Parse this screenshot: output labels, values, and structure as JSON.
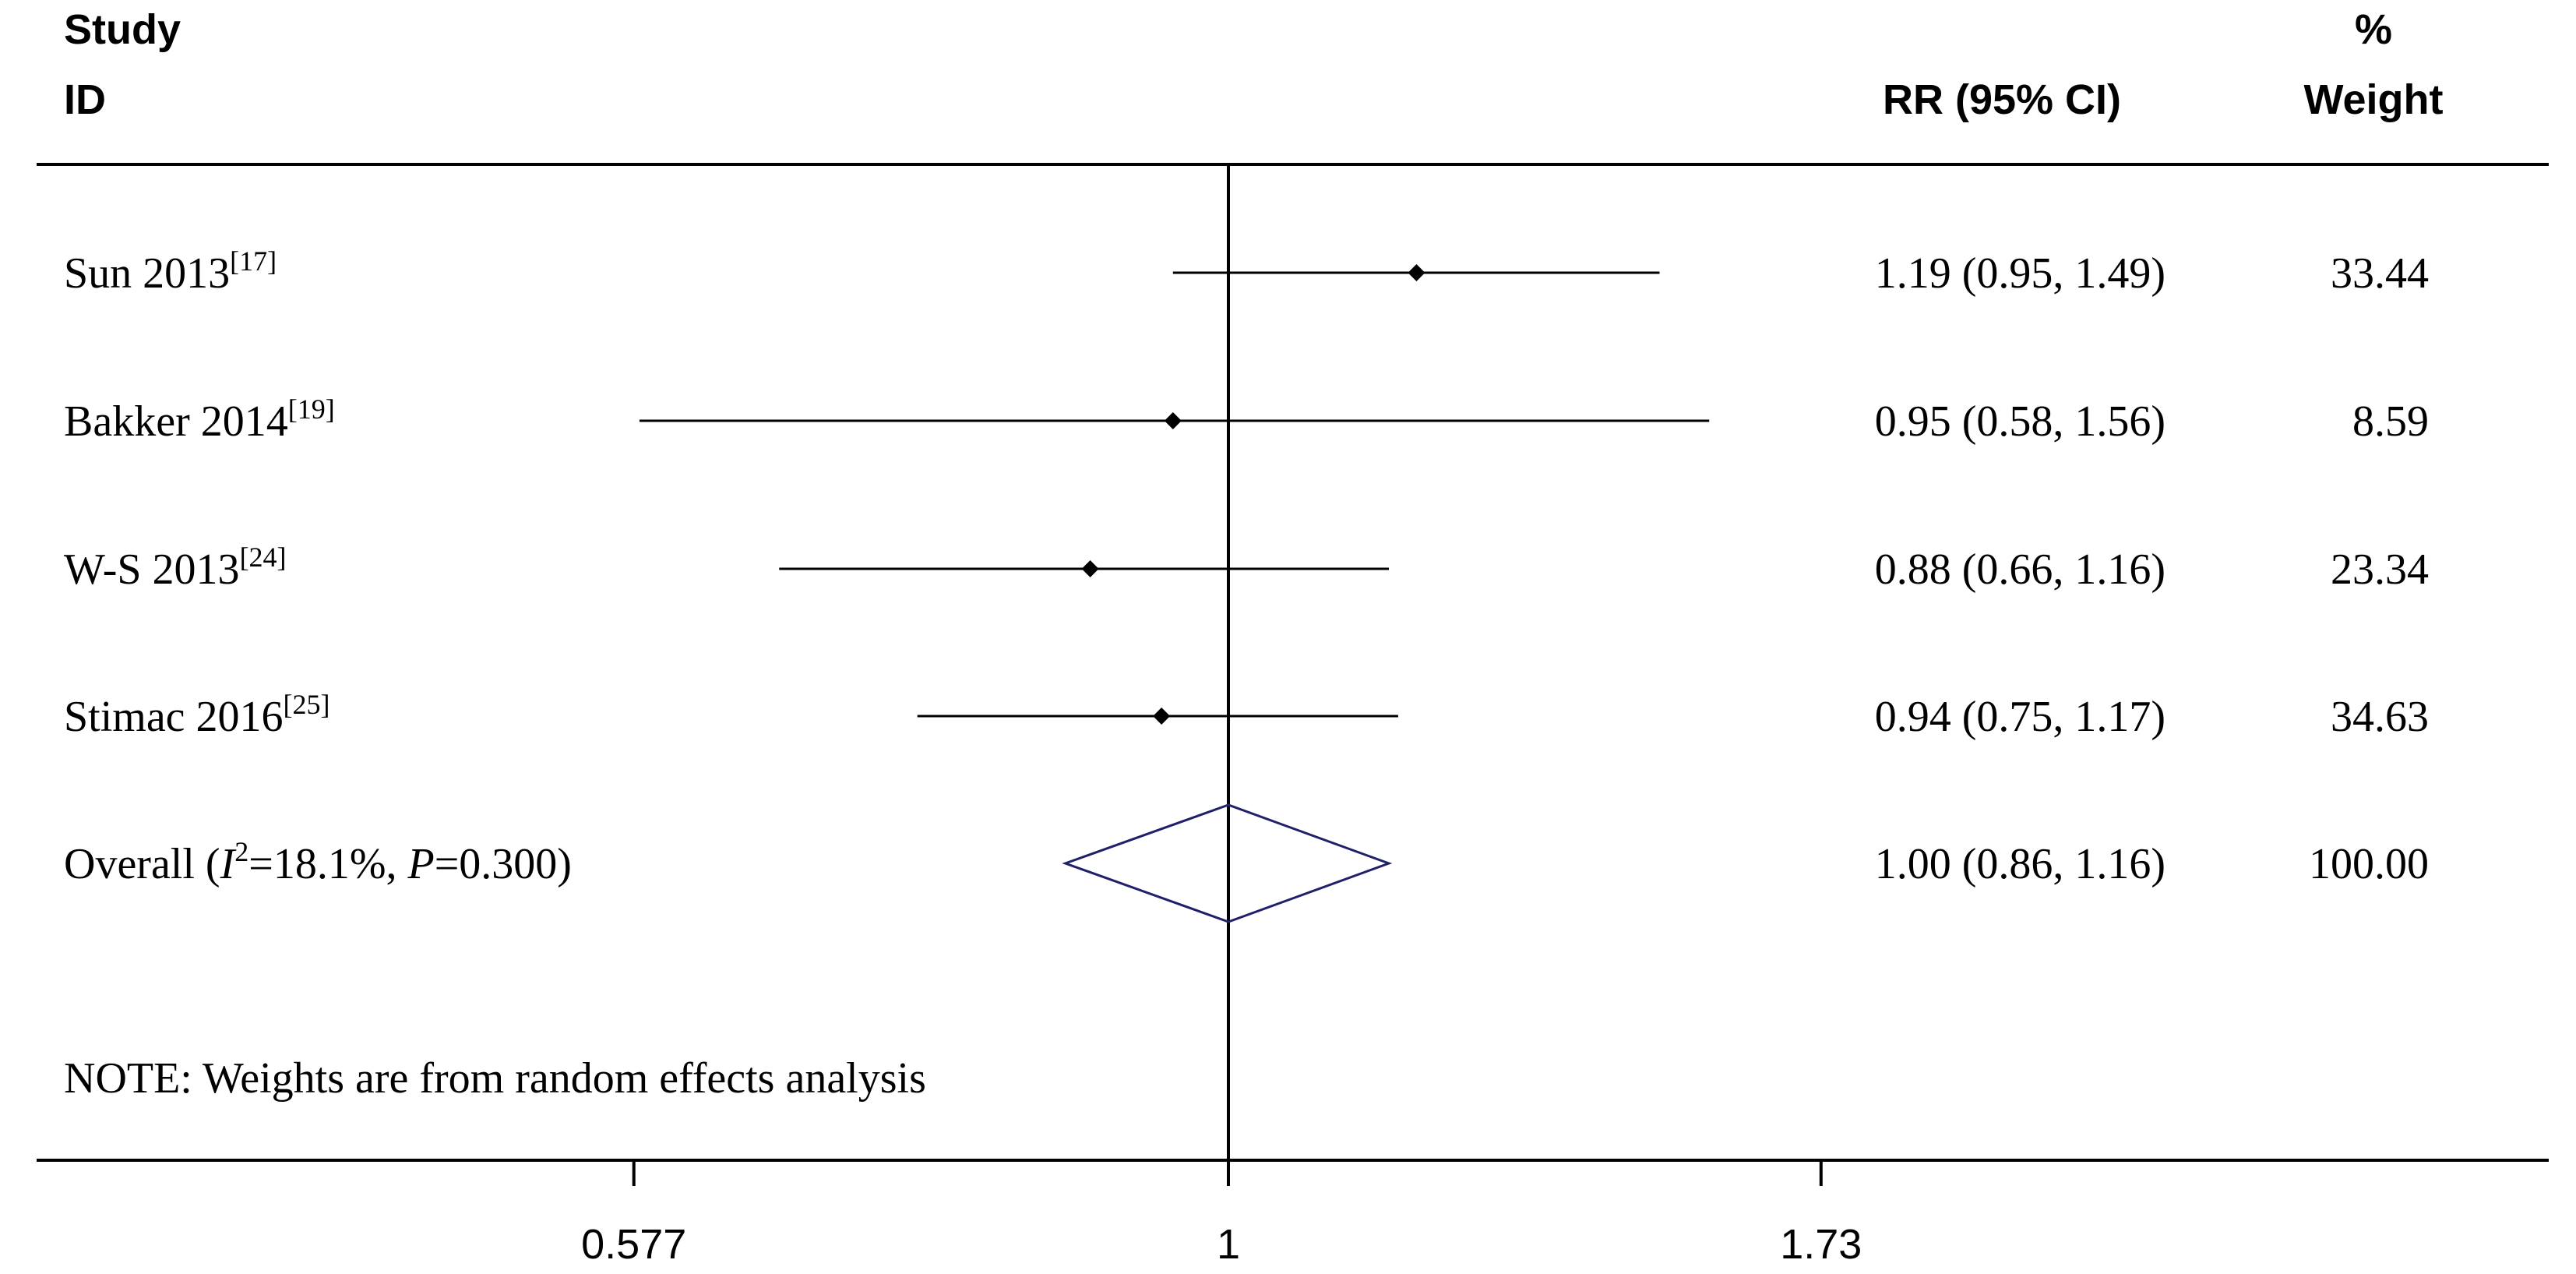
{
  "header": {
    "study_line1": "Study",
    "study_line2": "ID",
    "rr_label": "RR (95% CI)",
    "weight_line1": "%",
    "weight_line2": "Weight"
  },
  "chart_data": {
    "type": "forest",
    "scale": "log",
    "reference_line": 1,
    "xlim": [
      0.4826,
      2.1
    ],
    "x_ticks": [
      {
        "value": 0.577,
        "label": "0.577"
      },
      {
        "value": 1,
        "label": "1"
      },
      {
        "value": 1.73,
        "label": "1.73"
      }
    ],
    "studies": [
      {
        "name": "Sun 2013",
        "ref": "[17]",
        "rr": 1.19,
        "lower": 0.95,
        "upper": 1.49,
        "rr_text": "1.19 (0.95, 1.49)",
        "weight": "33.44"
      },
      {
        "name": "Bakker 2014",
        "ref": "[19]",
        "rr": 0.95,
        "lower": 0.58,
        "upper": 1.56,
        "rr_text": "0.95 (0.58, 1.56)",
        "weight": "8.59"
      },
      {
        "name": "W-S 2013",
        "ref": "[24]",
        "rr": 0.88,
        "lower": 0.66,
        "upper": 1.16,
        "rr_text": "0.88 (0.66, 1.16)",
        "weight": "23.34"
      },
      {
        "name": "Stimac 2016",
        "ref": "[25]",
        "rr": 0.94,
        "lower": 0.75,
        "upper": 1.17,
        "rr_text": "0.94 (0.75, 1.17)",
        "weight": "34.63"
      }
    ],
    "overall": {
      "label_prefix": "Overall  (",
      "i2_symbol": "I",
      "i2_sup": "2",
      "i2_value": "=18.1%, ",
      "p_symbol": "P",
      "p_value": "=0.300)",
      "rr": 1.0,
      "lower": 0.86,
      "upper": 1.16,
      "rr_text": "1.00 (0.86, 1.16)",
      "weight": "100.00"
    },
    "note": "NOTE: Weights are from random effects analysis",
    "colors": {
      "diamond": "#1f1f6b",
      "lines": "#000000"
    }
  }
}
